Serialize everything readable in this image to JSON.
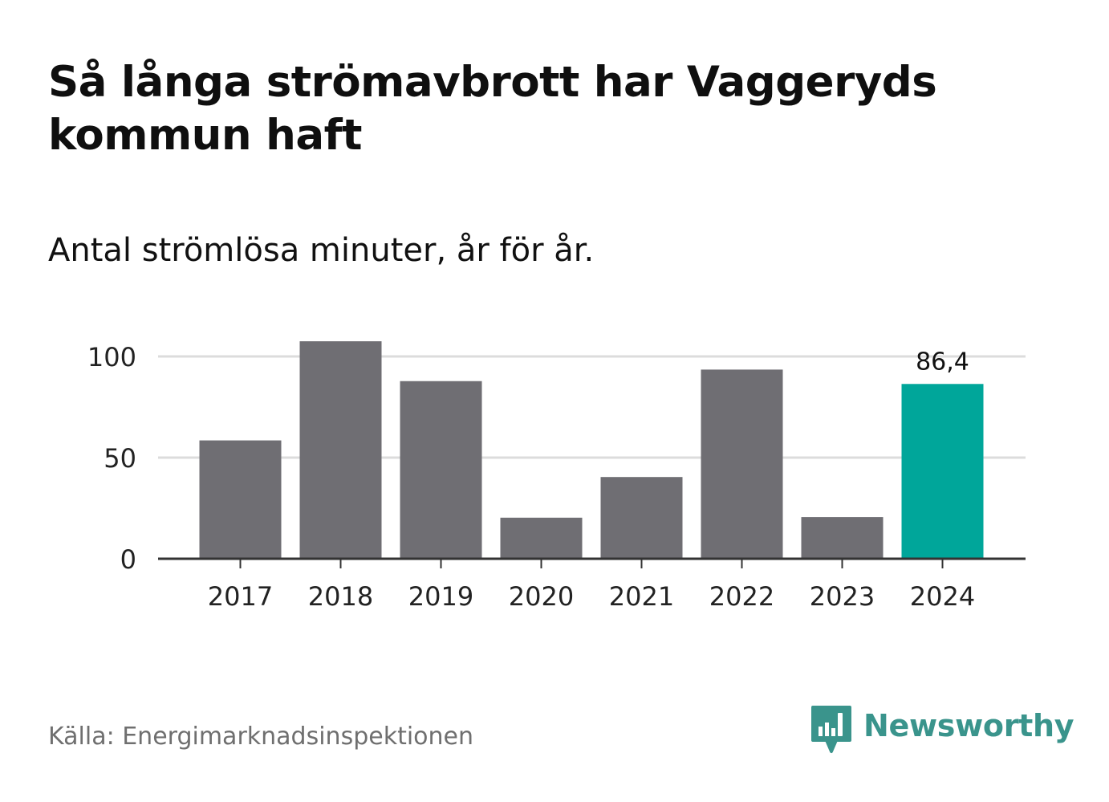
{
  "title": "Så långa strömavbrott har Vaggeryds kommun haft",
  "subtitle": "Antal strömlösa minuter, år för år.",
  "source": "Källa: Energimarknadsinspektionen",
  "brand": {
    "name": "Newsworthy",
    "icon": "newsworthy-logo-icon",
    "color": "#3a948c"
  },
  "colors": {
    "bar": "#6f6e73",
    "highlight": "#00a69a",
    "grid": "#dcdcdc",
    "axis": "#333333"
  },
  "chart_data": {
    "type": "bar",
    "categories": [
      "2017",
      "2018",
      "2019",
      "2020",
      "2021",
      "2022",
      "2023",
      "2024"
    ],
    "values": [
      58.5,
      107.5,
      87.8,
      20.3,
      40.4,
      93.5,
      20.6,
      86.4
    ],
    "highlight_index": 7,
    "data_labels": {
      "7": "86,4"
    },
    "yticks": [
      0,
      50,
      100
    ],
    "ylim": [
      0,
      110
    ],
    "grid": true,
    "title": "Så långa strömavbrott har Vaggeryds kommun haft",
    "xlabel": "",
    "ylabel": ""
  }
}
